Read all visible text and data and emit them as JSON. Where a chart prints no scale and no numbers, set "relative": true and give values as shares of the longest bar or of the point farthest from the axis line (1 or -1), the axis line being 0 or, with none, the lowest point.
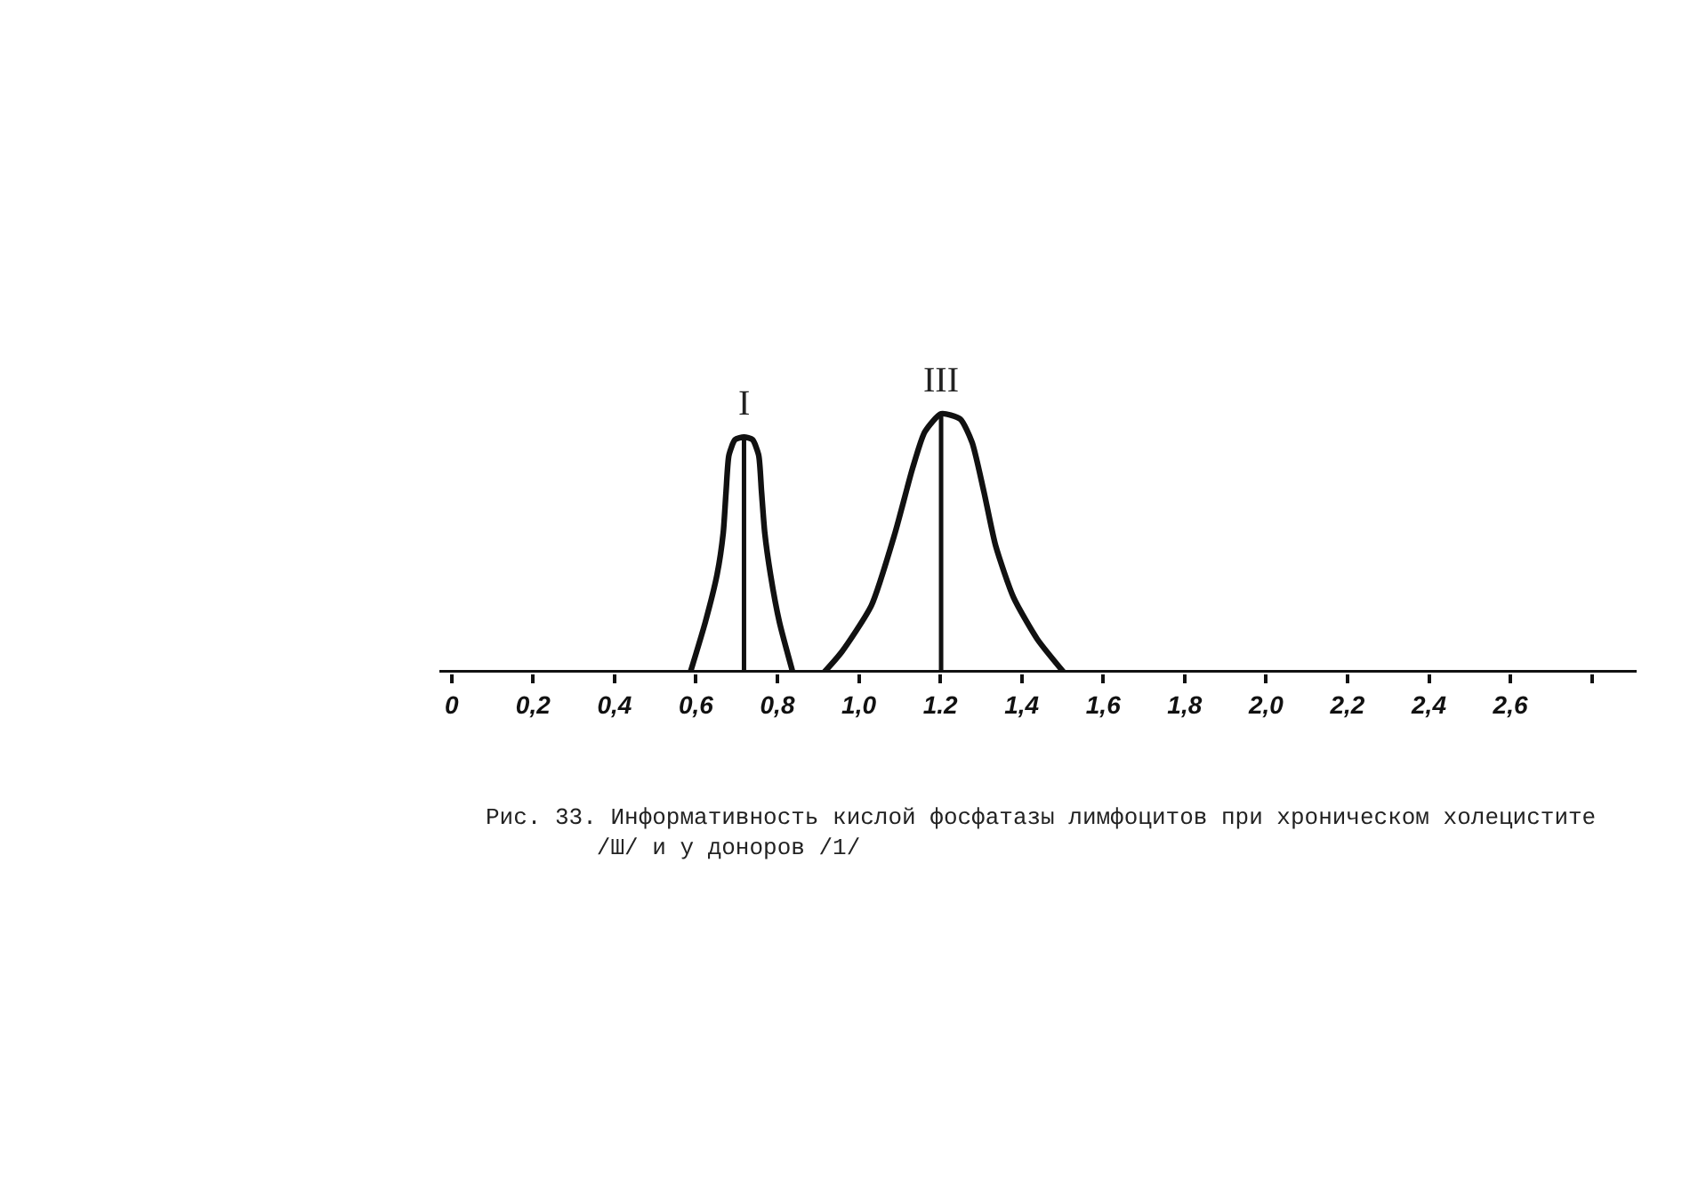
{
  "chart_data": {
    "type": "line",
    "relative": true,
    "series": [
      {
        "color": "#111111",
        "x": [
          0.586,
          0.623,
          0.652,
          0.667,
          0.674,
          0.681,
          0.696,
          0.718,
          0.739,
          0.754,
          0.761,
          0.769,
          0.783,
          0.805,
          0.838
        ],
        "values": [
          0,
          0.195,
          0.38,
          0.54,
          0.7,
          0.84,
          0.9,
          0.91,
          0.9,
          0.84,
          0.7,
          0.54,
          0.38,
          0.195,
          0
        ]
      },
      {
        "color": "#111111",
        "x": [
          0.914,
          0.958,
          1.031,
          1.089,
          1.132,
          1.162,
          1.202,
          1.249,
          1.278,
          1.307,
          1.336,
          1.38,
          1.438,
          1.504
        ],
        "values": [
          0,
          0.08,
          0.26,
          0.54,
          0.79,
          0.93,
          1,
          0.98,
          0.89,
          0.7,
          0.49,
          0.29,
          0.13,
          0
        ]
      }
    ],
    "xlim": [
      -0.03,
      2.91
    ],
    "xticks": [
      0,
      {
        "value": 0.2,
        "label": "0,2"
      },
      {
        "value": 0.4,
        "label": "0,4"
      },
      {
        "value": 0.6,
        "label": "0,6"
      },
      {
        "value": 0.8,
        "label": "0,8"
      },
      {
        "value": 1.0,
        "label": "1,0"
      },
      {
        "value": 1.2,
        "label": "1.2"
      },
      {
        "value": 1.4,
        "label": "1,4"
      },
      {
        "value": 1.6,
        "label": "1,6"
      },
      {
        "value": 1.8,
        "label": "1,8"
      },
      {
        "value": 2.0,
        "label": "2,0"
      },
      {
        "value": 2.2,
        "label": "2,2"
      },
      {
        "value": 2.4,
        "label": "2,4"
      },
      {
        "value": 2.6,
        "label": "2,6"
      },
      {
        "value": 2.8,
        "label": null
      }
    ],
    "ref_lines": [
      {
        "axis": "x",
        "value": 0.718,
        "label": "I"
      },
      {
        "axis": "x",
        "value": 1.202,
        "label": "III"
      }
    ],
    "annotations": [
      "Рис. 33. Информативность кислой фосфатазы лимфоцитов при хроническом холецистите\n/Ш/ и у доноров /1/"
    ],
    "marker": "none",
    "line_style": "solid"
  }
}
